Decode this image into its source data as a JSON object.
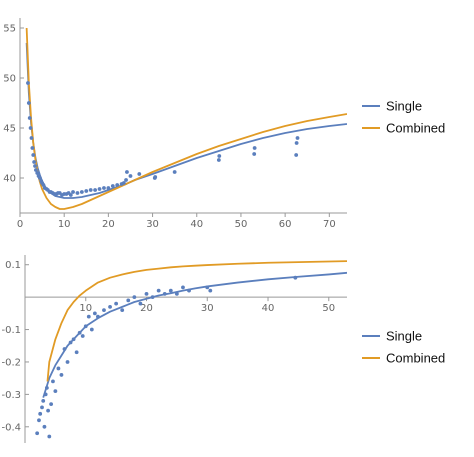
{
  "chart_data": [
    {
      "type": "scatter",
      "title": "",
      "xlabel": "",
      "ylabel": "",
      "xlim": [
        0,
        74
      ],
      "ylim": [
        36.5,
        56
      ],
      "x_ticks": [
        0,
        10,
        20,
        30,
        40,
        50,
        60,
        70
      ],
      "y_ticks": [
        40,
        45,
        50,
        55
      ],
      "x_tick_labels": [
        "0",
        "10",
        "20",
        "30",
        "40",
        "50",
        "60",
        "70"
      ],
      "y_tick_labels": [
        "40",
        "45",
        "50",
        "55"
      ],
      "legend_position": "right",
      "points": {
        "color": "#5b7fbd",
        "x": [
          1.8,
          2.0,
          2.2,
          2.4,
          2.6,
          2.8,
          3.0,
          3.2,
          3.4,
          3.6,
          3.9,
          4.2,
          4.5,
          4.8,
          5.0,
          5.3,
          5.6,
          6.0,
          6.3,
          6.7,
          7.0,
          7.4,
          7.8,
          8.2,
          8.6,
          9.0,
          9.5,
          10.0,
          10.5,
          11.0,
          11.5,
          12.0,
          13.0,
          14.0,
          15.0,
          16.0,
          17.0,
          18.0,
          19.0,
          20.0,
          21.0,
          22.0,
          23.0,
          23.5,
          24.0,
          24.2,
          25.0,
          27.0,
          30.5,
          30.6,
          35.0,
          45.0,
          45.1,
          53.0,
          53.1,
          62.5,
          62.6,
          62.8
        ],
        "y": [
          49.5,
          47.5,
          46.0,
          45.0,
          44.0,
          43.0,
          42.3,
          41.6,
          41.2,
          40.8,
          40.5,
          40.2,
          40.0,
          39.7,
          39.5,
          39.3,
          39.0,
          38.9,
          38.8,
          38.6,
          38.6,
          38.5,
          38.4,
          38.4,
          38.5,
          38.5,
          38.3,
          38.4,
          38.4,
          38.5,
          38.3,
          38.6,
          38.5,
          38.6,
          38.7,
          38.8,
          38.8,
          38.9,
          39.0,
          39.0,
          39.2,
          39.3,
          39.4,
          39.5,
          39.8,
          40.6,
          40.2,
          40.4,
          40.0,
          40.1,
          40.6,
          41.8,
          42.2,
          42.4,
          43.0,
          42.3,
          43.5,
          44.0
        ]
      },
      "series": [
        {
          "name": "Single",
          "color": "#5b7fbd",
          "x": [
            1.5,
            2,
            2.5,
            3,
            3.5,
            4,
            4.5,
            5,
            6,
            7,
            8,
            9,
            10,
            11,
            12,
            14,
            16,
            18,
            20,
            22,
            24,
            26,
            28,
            30,
            35,
            40,
            45,
            50,
            55,
            60,
            65,
            70,
            74
          ],
          "y": [
            53.5,
            48.5,
            45.5,
            43.5,
            42.0,
            41.0,
            40.3,
            39.7,
            38.9,
            38.5,
            38.2,
            38.1,
            38.0,
            38.0,
            38.0,
            38.1,
            38.3,
            38.5,
            38.8,
            39.1,
            39.4,
            39.8,
            40.1,
            40.4,
            41.2,
            42.0,
            42.7,
            43.4,
            44.0,
            44.5,
            44.9,
            45.2,
            45.4
          ]
        },
        {
          "name": "Combined",
          "color": "#e19b25",
          "x": [
            1.5,
            2,
            2.5,
            3,
            3.5,
            4,
            4.5,
            5,
            6,
            7,
            8,
            9,
            10,
            11,
            12,
            14,
            16,
            18,
            20,
            22,
            24,
            26,
            28,
            30,
            35,
            40,
            45,
            50,
            55,
            60,
            65,
            70,
            74
          ],
          "y": [
            55.0,
            49.5,
            46.0,
            43.5,
            41.8,
            40.5,
            39.6,
            38.9,
            38.0,
            37.4,
            37.1,
            36.9,
            36.9,
            37.0,
            37.1,
            37.4,
            37.8,
            38.2,
            38.6,
            39.0,
            39.4,
            39.8,
            40.2,
            40.6,
            41.5,
            42.4,
            43.2,
            43.9,
            44.6,
            45.2,
            45.7,
            46.1,
            46.4
          ]
        }
      ]
    },
    {
      "type": "scatter",
      "title": "",
      "xlabel": "",
      "ylabel": "",
      "xlim": [
        0,
        53
      ],
      "ylim": [
        -0.45,
        0.13
      ],
      "x_ticks": [
        10,
        20,
        30,
        40,
        50
      ],
      "y_ticks": [
        0.1,
        -0.1,
        -0.2,
        -0.3,
        -0.4
      ],
      "x_tick_labels": [
        "10",
        "20",
        "30",
        "40",
        "50"
      ],
      "y_tick_labels": [
        "0.1",
        "-0.1",
        "-0.2",
        "-0.3",
        "-0.4"
      ],
      "legend_position": "right",
      "points": {
        "color": "#5b7fbd",
        "x": [
          2.0,
          2.3,
          2.5,
          2.8,
          3.0,
          3.2,
          3.4,
          3.6,
          3.8,
          4.0,
          4.3,
          4.6,
          5.0,
          5.5,
          6.0,
          6.5,
          7.0,
          7.5,
          8.0,
          8.5,
          9.0,
          9.5,
          10.0,
          10.5,
          11.0,
          11.5,
          12.0,
          13.0,
          14.0,
          15.0,
          16.0,
          17.0,
          18.0,
          19.0,
          20.0,
          21.0,
          22.0,
          23.0,
          24.0,
          25.0,
          26.0,
          27.0,
          30.0,
          30.5,
          44.5
        ],
        "y": [
          -0.42,
          -0.38,
          -0.36,
          -0.34,
          -0.32,
          -0.4,
          -0.3,
          -0.28,
          -0.35,
          -0.43,
          -0.33,
          -0.26,
          -0.29,
          -0.22,
          -0.24,
          -0.16,
          -0.2,
          -0.14,
          -0.13,
          -0.17,
          -0.11,
          -0.12,
          -0.09,
          -0.06,
          -0.1,
          -0.05,
          -0.06,
          -0.04,
          -0.03,
          -0.02,
          -0.04,
          -0.01,
          0.0,
          -0.02,
          0.01,
          0.0,
          0.02,
          0.01,
          0.02,
          0.01,
          0.03,
          0.02,
          0.03,
          0.02,
          0.06
        ]
      },
      "series": [
        {
          "name": "Single",
          "color": "#5b7fbd",
          "x": [
            3,
            4,
            5,
            6,
            7,
            8,
            9,
            10,
            12,
            14,
            16,
            18,
            20,
            22,
            24,
            26,
            28,
            30,
            35,
            40,
            45,
            50,
            53
          ],
          "y": [
            -0.31,
            -0.25,
            -0.21,
            -0.18,
            -0.15,
            -0.13,
            -0.11,
            -0.09,
            -0.065,
            -0.045,
            -0.03,
            -0.015,
            -0.005,
            0.005,
            0.012,
            0.02,
            0.027,
            0.033,
            0.045,
            0.055,
            0.063,
            0.07,
            0.075
          ]
        },
        {
          "name": "Combined",
          "color": "#e19b25",
          "x": [
            3.7,
            4,
            5,
            6,
            7,
            8,
            9,
            10,
            12,
            14,
            16,
            18,
            20,
            22,
            24,
            26,
            28,
            30,
            35,
            40,
            45,
            50,
            53
          ],
          "y": [
            -0.26,
            -0.2,
            -0.13,
            -0.08,
            -0.04,
            -0.015,
            0.005,
            0.02,
            0.045,
            0.06,
            0.07,
            0.078,
            0.084,
            0.088,
            0.092,
            0.095,
            0.097,
            0.099,
            0.103,
            0.106,
            0.108,
            0.11,
            0.111
          ]
        }
      ]
    }
  ]
}
